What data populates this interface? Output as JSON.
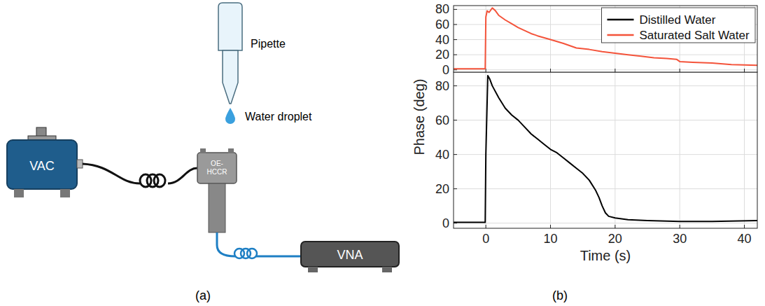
{
  "diagram": {
    "panel_label": "(a)",
    "nodes": [
      {
        "label": "Pipette"
      },
      {
        "label": "Water droplet"
      },
      {
        "label": "VAC"
      },
      {
        "lines": [
          "OE-",
          "HCCR"
        ]
      },
      {
        "label": "VNA"
      }
    ]
  },
  "chart_data": {
    "type": "line",
    "panel_label": "(b)",
    "xlabel": "Time (s)",
    "ylabel": "Phase (deg)",
    "xlim": [
      -5,
      42
    ],
    "xticks": [
      0,
      10,
      20,
      30,
      40
    ],
    "grid": true,
    "legend": "upper right",
    "series": [
      {
        "name": "Distilled Water",
        "color": "#000000",
        "ylim": [
          -3,
          88
        ],
        "yticks": [
          0,
          20,
          40,
          60,
          80
        ],
        "x": [
          -5,
          -2,
          -0.1,
          0,
          0.3,
          0.6,
          1,
          2,
          3,
          4,
          5,
          6,
          7,
          8,
          9,
          10,
          11,
          12,
          13,
          14,
          15,
          16,
          17,
          17.5,
          18,
          18.5,
          19,
          20,
          22,
          25,
          30,
          35,
          42
        ],
        "values": [
          0.5,
          0.5,
          0.5,
          40,
          86,
          84,
          80,
          73,
          67,
          63,
          60,
          56,
          52,
          49,
          46,
          43,
          41,
          38,
          35,
          32,
          29,
          25,
          19,
          15,
          10,
          6,
          4,
          3,
          2,
          1.5,
          1,
          1,
          1.5
        ]
      },
      {
        "name": "Saturated Salt Water",
        "color": "#f4533a",
        "ylim": [
          -3,
          85
        ],
        "yticks": [
          0,
          20,
          40,
          60,
          80
        ],
        "x": [
          -5,
          -2,
          -0.1,
          0,
          0.2,
          0.5,
          1,
          1.5,
          2,
          3,
          4,
          5,
          6,
          7,
          8,
          10,
          12,
          14,
          16,
          18,
          20,
          22,
          24,
          26,
          28,
          29.5,
          30,
          32,
          35,
          38,
          42
        ],
        "values": [
          1.5,
          1.5,
          1.5,
          70,
          78,
          76,
          82,
          78,
          72,
          66,
          61,
          56,
          52,
          48,
          45,
          40,
          35,
          29,
          27,
          24,
          22,
          20,
          18,
          16,
          15,
          14,
          11,
          10,
          9,
          7,
          6
        ]
      }
    ]
  }
}
